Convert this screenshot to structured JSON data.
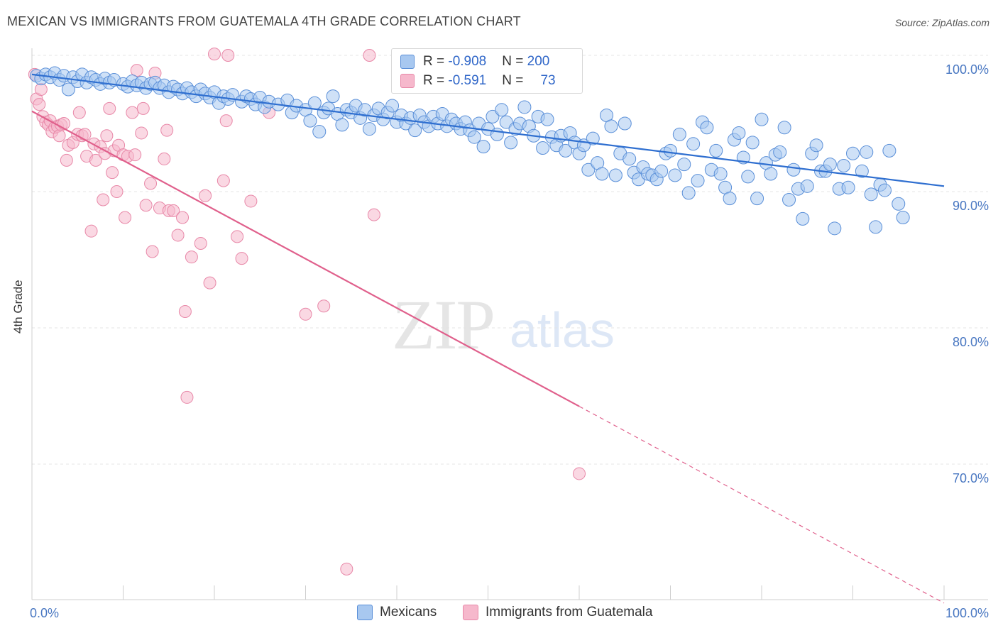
{
  "title": "MEXICAN VS IMMIGRANTS FROM GUATEMALA 4TH GRADE CORRELATION CHART",
  "source": "Source: ZipAtlas.com",
  "watermark": {
    "zip": "ZIP",
    "atlas": "atlas"
  },
  "legend": {
    "row1": {
      "r_label": "R = ",
      "r_value": "-0.908",
      "n_label": "N = ",
      "n_value": "200"
    },
    "row2": {
      "r_label": "R = ",
      "r_value": "-0.591",
      "n_label": "N = ",
      "n_value": "73"
    }
  },
  "colors": {
    "blue_fill": "#a8c8f0",
    "blue_stroke": "#5a8fd8",
    "blue_line": "#2f6fd0",
    "pink_fill": "#f6b8cc",
    "pink_stroke": "#e888a8",
    "pink_line": "#e0608c",
    "grid": "#e4e4e4",
    "tick_text": "#4a78c2"
  },
  "chart_data": {
    "type": "scatter",
    "title": "MEXICAN VS IMMIGRANTS FROM GUATEMALA 4TH GRADE CORRELATION CHART",
    "xlabel": "",
    "ylabel": "4th Grade",
    "xlim": [
      0,
      100
    ],
    "ylim": [
      60,
      101
    ],
    "x_tick_labels": [
      "0.0%",
      "100.0%"
    ],
    "y_ticks": [
      {
        "value": 100,
        "label": "100.0%"
      },
      {
        "value": 90,
        "label": "90.0%"
      },
      {
        "value": 80,
        "label": "80.0%"
      },
      {
        "value": 70,
        "label": "70.0%"
      }
    ],
    "grid": "horizontal dashed",
    "series": [
      {
        "name": "Mexicans",
        "r": -0.908,
        "n": 200,
        "trend": {
          "x": [
            0,
            100
          ],
          "y": [
            98.6,
            90.4
          ],
          "dashed_from": null
        },
        "points": [
          [
            0.5,
            98.5
          ],
          [
            1,
            98.3
          ],
          [
            1.5,
            98.6
          ],
          [
            2,
            98.4
          ],
          [
            2.5,
            98.7
          ],
          [
            3,
            98.2
          ],
          [
            3.5,
            98.5
          ],
          [
            4,
            97.5
          ],
          [
            4.5,
            98.4
          ],
          [
            5,
            98.1
          ],
          [
            5.5,
            98.6
          ],
          [
            6,
            98.0
          ],
          [
            6.5,
            98.4
          ],
          [
            7,
            98.2
          ],
          [
            7.5,
            97.9
          ],
          [
            8,
            98.3
          ],
          [
            8.5,
            98.0
          ],
          [
            9,
            98.2
          ],
          [
            10,
            97.9
          ],
          [
            10.5,
            97.7
          ],
          [
            11,
            98.1
          ],
          [
            11.5,
            97.8
          ],
          [
            12,
            98.0
          ],
          [
            12.5,
            97.6
          ],
          [
            13,
            97.9
          ],
          [
            13.5,
            98.0
          ],
          [
            14,
            97.6
          ],
          [
            14.5,
            97.8
          ],
          [
            15,
            97.3
          ],
          [
            15.5,
            97.7
          ],
          [
            16,
            97.5
          ],
          [
            16.5,
            97.2
          ],
          [
            17,
            97.6
          ],
          [
            17.5,
            97.3
          ],
          [
            18,
            97.0
          ],
          [
            18.5,
            97.5
          ],
          [
            19,
            97.2
          ],
          [
            19.5,
            96.9
          ],
          [
            20,
            97.3
          ],
          [
            20.5,
            96.5
          ],
          [
            21,
            97.0
          ],
          [
            21.5,
            96.8
          ],
          [
            22,
            97.1
          ],
          [
            23,
            96.6
          ],
          [
            23.5,
            97.0
          ],
          [
            24,
            96.8
          ],
          [
            24.5,
            96.4
          ],
          [
            25,
            96.9
          ],
          [
            25.5,
            96.2
          ],
          [
            26,
            96.6
          ],
          [
            27,
            96.4
          ],
          [
            28,
            96.7
          ],
          [
            28.5,
            95.8
          ],
          [
            29,
            96.3
          ],
          [
            30,
            96.0
          ],
          [
            30.5,
            95.2
          ],
          [
            31,
            96.5
          ],
          [
            31.5,
            94.4
          ],
          [
            32,
            95.8
          ],
          [
            32.5,
            96.1
          ],
          [
            33,
            97.0
          ],
          [
            33.5,
            95.7
          ],
          [
            34,
            94.9
          ],
          [
            34.5,
            96.0
          ],
          [
            35,
            95.8
          ],
          [
            35.5,
            96.3
          ],
          [
            36,
            95.4
          ],
          [
            36.5,
            96.0
          ],
          [
            37,
            94.6
          ],
          [
            37.5,
            95.6
          ],
          [
            38,
            96.1
          ],
          [
            38.5,
            95.3
          ],
          [
            39,
            95.8
          ],
          [
            39.5,
            96.3
          ],
          [
            40,
            95.1
          ],
          [
            40.5,
            95.6
          ],
          [
            41,
            95.0
          ],
          [
            41.5,
            95.4
          ],
          [
            42,
            94.5
          ],
          [
            42.5,
            95.6
          ],
          [
            43,
            95.1
          ],
          [
            43.5,
            94.8
          ],
          [
            44,
            95.5
          ],
          [
            44.5,
            95.0
          ],
          [
            45,
            95.7
          ],
          [
            45.5,
            94.8
          ],
          [
            46,
            95.3
          ],
          [
            46.5,
            95.0
          ],
          [
            47,
            94.6
          ],
          [
            47.5,
            95.1
          ],
          [
            48,
            94.5
          ],
          [
            48.5,
            94.0
          ],
          [
            49,
            95.0
          ],
          [
            49.5,
            93.3
          ],
          [
            50,
            94.6
          ],
          [
            50.5,
            95.5
          ],
          [
            51,
            94.2
          ],
          [
            51.5,
            96.0
          ],
          [
            52,
            95.1
          ],
          [
            52.5,
            93.6
          ],
          [
            53,
            94.6
          ],
          [
            53.5,
            95.0
          ],
          [
            54,
            96.2
          ],
          [
            54.5,
            94.8
          ],
          [
            55,
            94.1
          ],
          [
            55.5,
            95.5
          ],
          [
            56,
            93.2
          ],
          [
            56.5,
            95.3
          ],
          [
            57,
            94.0
          ],
          [
            57.5,
            93.4
          ],
          [
            58,
            94.1
          ],
          [
            58.5,
            93.0
          ],
          [
            59,
            94.3
          ],
          [
            59.5,
            93.6
          ],
          [
            60,
            92.8
          ],
          [
            60.5,
            93.4
          ],
          [
            61,
            91.6
          ],
          [
            61.5,
            93.9
          ],
          [
            62,
            92.1
          ],
          [
            62.5,
            91.3
          ],
          [
            63,
            95.6
          ],
          [
            63.5,
            94.8
          ],
          [
            64,
            91.2
          ],
          [
            64.5,
            92.8
          ],
          [
            65,
            95.0
          ],
          [
            65.5,
            92.4
          ],
          [
            66,
            91.4
          ],
          [
            66.5,
            90.9
          ],
          [
            67,
            91.8
          ],
          [
            67.5,
            91.3
          ],
          [
            68,
            91.2
          ],
          [
            68.5,
            90.9
          ],
          [
            69,
            91.5
          ],
          [
            69.5,
            92.8
          ],
          [
            70,
            93.0
          ],
          [
            70.5,
            91.2
          ],
          [
            71,
            94.2
          ],
          [
            71.5,
            92.0
          ],
          [
            72,
            89.9
          ],
          [
            72.5,
            93.5
          ],
          [
            73,
            90.8
          ],
          [
            73.5,
            95.1
          ],
          [
            74,
            94.7
          ],
          [
            74.5,
            91.6
          ],
          [
            75,
            93.0
          ],
          [
            75.5,
            91.3
          ],
          [
            76,
            90.3
          ],
          [
            76.5,
            89.5
          ],
          [
            77,
            93.8
          ],
          [
            77.5,
            94.3
          ],
          [
            78,
            92.5
          ],
          [
            78.5,
            91.1
          ],
          [
            79,
            93.6
          ],
          [
            79.5,
            89.5
          ],
          [
            80,
            95.3
          ],
          [
            80.5,
            92.1
          ],
          [
            81,
            91.3
          ],
          [
            81.5,
            92.7
          ],
          [
            82,
            92.9
          ],
          [
            82.5,
            94.7
          ],
          [
            83,
            89.4
          ],
          [
            83.5,
            91.6
          ],
          [
            84,
            90.2
          ],
          [
            84.5,
            88.0
          ],
          [
            85,
            90.4
          ],
          [
            85.5,
            92.8
          ],
          [
            86,
            93.4
          ],
          [
            86.5,
            91.5
          ],
          [
            87,
            91.5
          ],
          [
            87.5,
            92.0
          ],
          [
            88,
            87.3
          ],
          [
            88.5,
            90.2
          ],
          [
            89,
            91.9
          ],
          [
            89.5,
            90.3
          ],
          [
            90,
            92.8
          ],
          [
            91,
            91.5
          ],
          [
            91.5,
            92.9
          ],
          [
            92,
            89.8
          ],
          [
            92.5,
            87.4
          ],
          [
            93,
            90.5
          ],
          [
            93.5,
            90.1
          ],
          [
            94,
            93.0
          ],
          [
            95,
            89.1
          ],
          [
            95.5,
            88.1
          ]
        ]
      },
      {
        "name": "Immigrants from Guatemala",
        "r": -0.591,
        "n": 73,
        "trend": {
          "x": [
            0,
            100
          ],
          "y": [
            95.9,
            59.8
          ],
          "solid_until": 60
        },
        "points": [
          [
            0.3,
            98.6
          ],
          [
            0.5,
            96.8
          ],
          [
            0.8,
            96.4
          ],
          [
            1,
            97.5
          ],
          [
            1.2,
            95.5
          ],
          [
            1.5,
            95.1
          ],
          [
            1.8,
            94.9
          ],
          [
            2,
            95.2
          ],
          [
            2.2,
            94.4
          ],
          [
            2.5,
            94.7
          ],
          [
            2.8,
            94.8
          ],
          [
            3,
            94.1
          ],
          [
            3.2,
            94.9
          ],
          [
            3.5,
            95.0
          ],
          [
            3.8,
            92.3
          ],
          [
            4,
            93.4
          ],
          [
            4.5,
            93.6
          ],
          [
            5,
            94.2
          ],
          [
            5.2,
            95.8
          ],
          [
            5.5,
            94.1
          ],
          [
            5.8,
            94.2
          ],
          [
            6,
            92.6
          ],
          [
            6.5,
            87.1
          ],
          [
            6.8,
            93.5
          ],
          [
            7,
            92.3
          ],
          [
            7.5,
            93.3
          ],
          [
            7.8,
            89.4
          ],
          [
            8,
            92.8
          ],
          [
            8.2,
            94.1
          ],
          [
            8.5,
            96.1
          ],
          [
            8.8,
            91.4
          ],
          [
            9,
            93.0
          ],
          [
            9.3,
            90.0
          ],
          [
            9.5,
            93.4
          ],
          [
            10,
            92.7
          ],
          [
            10.2,
            88.1
          ],
          [
            10.5,
            92.6
          ],
          [
            11,
            95.8
          ],
          [
            11.3,
            92.7
          ],
          [
            11.5,
            98.9
          ],
          [
            12,
            94.3
          ],
          [
            12.2,
            96.1
          ],
          [
            12.5,
            89.0
          ],
          [
            13,
            90.6
          ],
          [
            13.2,
            85.6
          ],
          [
            13.5,
            98.7
          ],
          [
            14,
            88.8
          ],
          [
            14.5,
            92.4
          ],
          [
            14.8,
            94.5
          ],
          [
            15,
            88.6
          ],
          [
            15.5,
            88.6
          ],
          [
            16,
            86.8
          ],
          [
            16.5,
            88.1
          ],
          [
            16.8,
            81.2
          ],
          [
            17.5,
            85.2
          ],
          [
            18.5,
            86.2
          ],
          [
            19,
            89.7
          ],
          [
            19.5,
            83.3
          ],
          [
            20,
            100.1
          ],
          [
            21,
            90.8
          ],
          [
            21.3,
            95.2
          ],
          [
            21.5,
            100.0
          ],
          [
            22.5,
            86.7
          ],
          [
            23,
            85.1
          ],
          [
            24,
            89.3
          ],
          [
            26,
            95.8
          ],
          [
            30,
            81.0
          ],
          [
            32,
            81.6
          ],
          [
            34.5,
            62.3
          ],
          [
            37,
            100.0
          ],
          [
            37.5,
            88.3
          ],
          [
            60,
            69.3
          ],
          [
            17,
            74.9
          ]
        ]
      }
    ]
  },
  "bottom_legend": {
    "item1": "Mexicans",
    "item2": "Immigrants from Guatemala"
  }
}
